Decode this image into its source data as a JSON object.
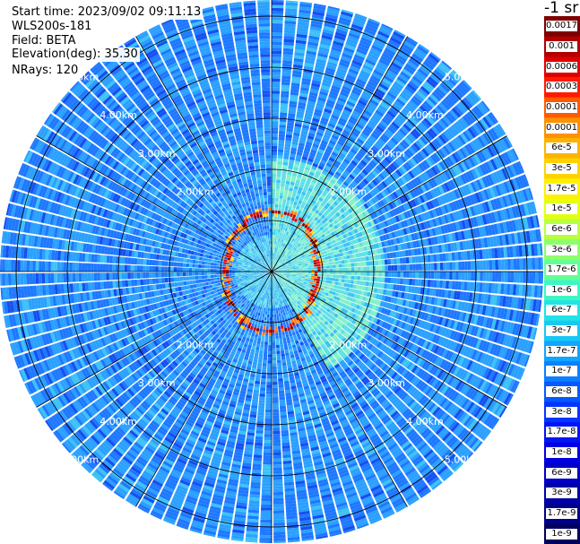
{
  "info": {
    "start_time": "Start time: 2023/09/02 09:11:13",
    "instrument": "WLS200s-181",
    "field": "Field: BETA",
    "elevation": "Elevation(deg): 35.30",
    "nrays": "NRays: 120"
  },
  "colorbar": {
    "unit": "-1 sr",
    "labels": [
      "0.0017",
      "0.001",
      "0.0006",
      "0.0003",
      "0.00017",
      "0.0001",
      "6e-5",
      "3e-5",
      "1.7e-5",
      "1e-5",
      "6e-6",
      "3e-6",
      "1.7e-6",
      "1e-6",
      "6e-7",
      "3e-7",
      "1.7e-7",
      "1e-7",
      "6e-8",
      "3e-8",
      "1.7e-8",
      "1e-8",
      "6e-9",
      "3e-9",
      "1.7e-9",
      "1e-9"
    ],
    "colors": [
      "#7f0000",
      "#b00000",
      "#e00000",
      "#ff1a00",
      "#ff5a00",
      "#ff9000",
      "#ffb300",
      "#ffd200",
      "#fff000",
      "#e3ff14",
      "#b8ff3f",
      "#8dff6b",
      "#62ff96",
      "#3df7c2",
      "#20e3e8",
      "#17c8f5",
      "#0ea6ff",
      "#0a80ff",
      "#0559ff",
      "#0434ff",
      "#0014f5",
      "#0000e0",
      "#0000c6",
      "#0000a8",
      "#00008a",
      "#000060"
    ]
  },
  "chart_data": {
    "type": "heatmap",
    "projection": "polar (PPI scan)",
    "nrays": 120,
    "elevation_deg": 35.3,
    "field": "BETA",
    "range_rings_km": [
      1,
      2,
      3,
      4,
      5
    ],
    "range_ring_labels": [
      "2.00km",
      "3.00km",
      "4.00km",
      "5.00km"
    ],
    "max_range_km": 5.3,
    "spokes_deg": [
      0,
      30,
      60,
      90,
      120,
      150,
      180,
      210,
      240,
      270,
      300,
      330
    ],
    "color_scale": "log10 beta, 1e-9 to 0.0017 sr-1",
    "features": {
      "background_beta_range": [
        "1e-8",
        "1e-7"
      ],
      "sector_high_beta_azimuth_deg": [
        0,
        150
      ],
      "sector_high_beta_value": "1e-7",
      "ring_feature_radius_km": 1.0,
      "ring_feature_peak_beta": "1e-4"
    },
    "grid": true,
    "legend": "right"
  }
}
